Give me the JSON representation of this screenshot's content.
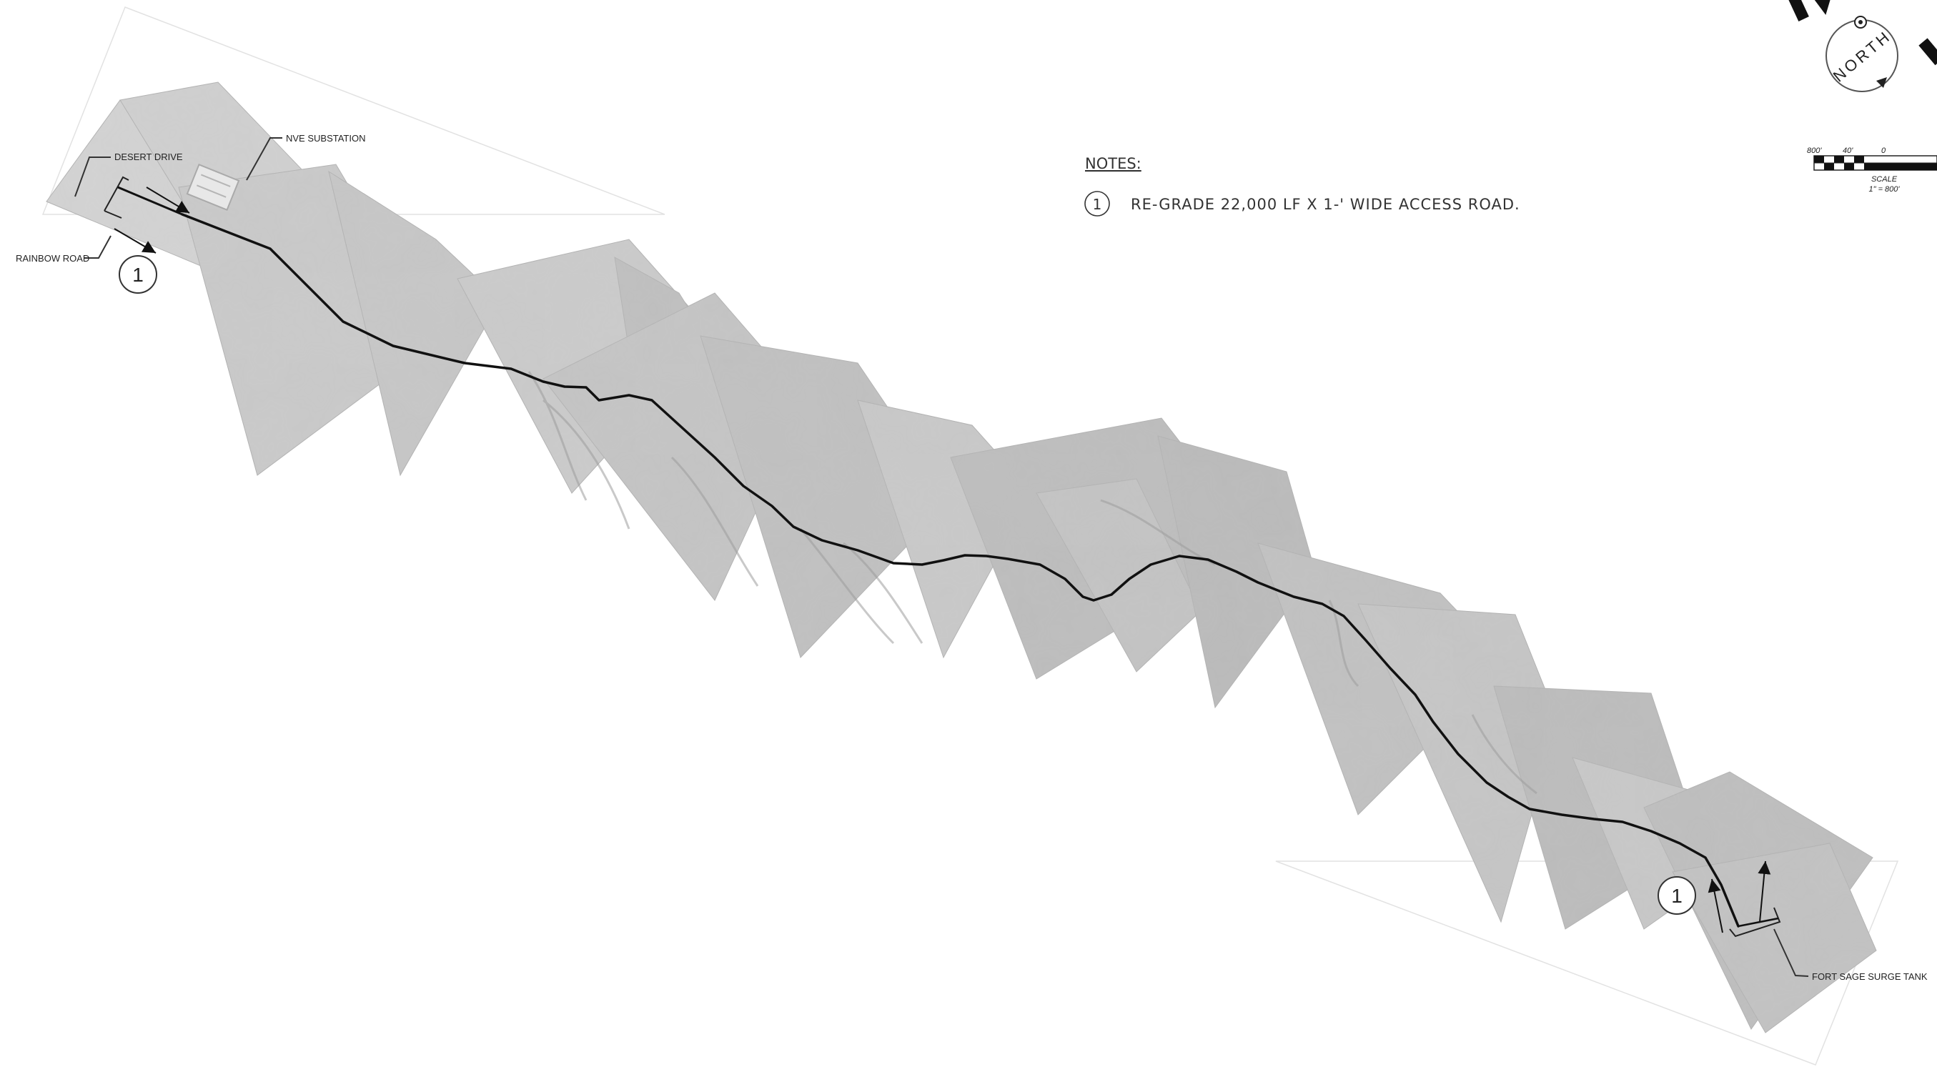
{
  "notes": {
    "heading": "NOTES:",
    "items": [
      {
        "number": "1",
        "text": "RE-GRADE 22,000 LF X 1-' WIDE ACCESS ROAD."
      }
    ]
  },
  "labels": {
    "desert_drive": "DESERT DRIVE",
    "nve_substation": "NVE SUBSTATION",
    "rainbow_road": "RAINBOW ROAD",
    "fort_sage_surge_tank": "FORT SAGE SURGE TANK"
  },
  "keynote_markers": {
    "start": "1",
    "end": "1"
  },
  "north_arrow": {
    "text": "NORTH",
    "icon": "north-arrow-icon"
  },
  "scale_bar": {
    "ticks": [
      "800'",
      "40'",
      "0"
    ],
    "label": "SCALE",
    "ratio": "1\" = 800'"
  },
  "colors": {
    "aerial_light": "#d4d4d4",
    "aerial_dark": "#b9b9b9",
    "route_line": "#111111",
    "leader_line": "#333333",
    "text": "#222222"
  }
}
